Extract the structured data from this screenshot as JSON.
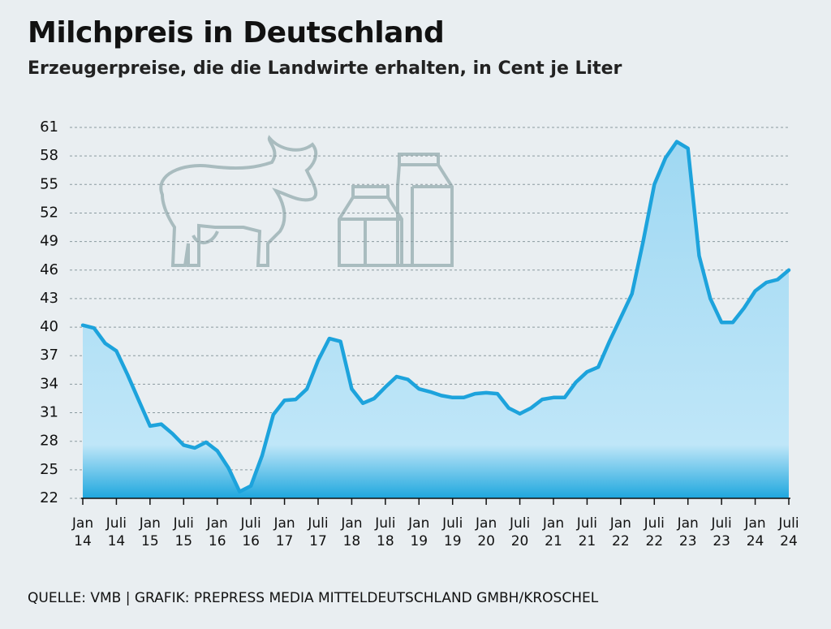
{
  "chart_data": {
    "type": "line",
    "title": "Milchpreis in Deutschland",
    "subtitle": "Erzeugerpreise, die die Landwirte erhalten, in Cent je Liter",
    "source": "QUELLE: VMB  | GRAFIK: PREPRESS MEDIA MITTELDEUTSCHLAND GMBH/KROSCHEL",
    "categories": [
      "Jan 14",
      null,
      null,
      "Juli 14",
      null,
      null,
      "Jan 15",
      null,
      null,
      "Juli 15",
      null,
      null,
      "Jan 16",
      null,
      null,
      "Juli 16",
      null,
      null,
      "Jan 17",
      null,
      null,
      "Juli 17",
      null,
      null,
      "Jan 18",
      null,
      null,
      "Juli 18",
      null,
      null,
      "Jan 19",
      null,
      null,
      "Juli 19",
      null,
      null,
      "Jan 20",
      null,
      null,
      "Juli 20",
      null,
      null,
      "Jan 21",
      null,
      null,
      "Juli 21",
      null,
      null,
      "Jan 22",
      null,
      null,
      "Juli 22",
      null,
      null,
      "Jan 23",
      null,
      null,
      "Juli 23",
      null,
      null,
      "Jan 24",
      null,
      null,
      "Juli 24"
    ],
    "values": [
      40.2,
      39.9,
      38.3,
      37.5,
      35.0,
      32.3,
      29.6,
      29.8,
      28.8,
      27.6,
      27.3,
      27.9,
      27.0,
      25.2,
      22.7,
      23.3,
      26.5,
      30.8,
      32.3,
      32.4,
      33.5,
      36.5,
      38.8,
      38.5,
      33.5,
      32.0,
      32.5,
      33.7,
      34.8,
      34.5,
      33.5,
      33.2,
      32.8,
      32.6,
      32.6,
      33.0,
      33.1,
      33.0,
      31.5,
      30.9,
      31.5,
      32.4,
      32.6,
      32.6,
      34.2,
      35.3,
      35.8,
      38.5,
      41.0,
      43.5,
      49.0,
      55.0,
      57.8,
      59.5,
      58.8,
      47.5,
      43.0,
      40.5,
      40.5,
      42.0,
      43.8,
      44.7,
      45.0,
      46.0
    ],
    "color": "#1da3dc",
    "ylim": [
      22,
      61
    ],
    "yticks": [
      22,
      25,
      28,
      31,
      34,
      37,
      40,
      43,
      46,
      49,
      52,
      55,
      58,
      61
    ],
    "grid": true
  }
}
